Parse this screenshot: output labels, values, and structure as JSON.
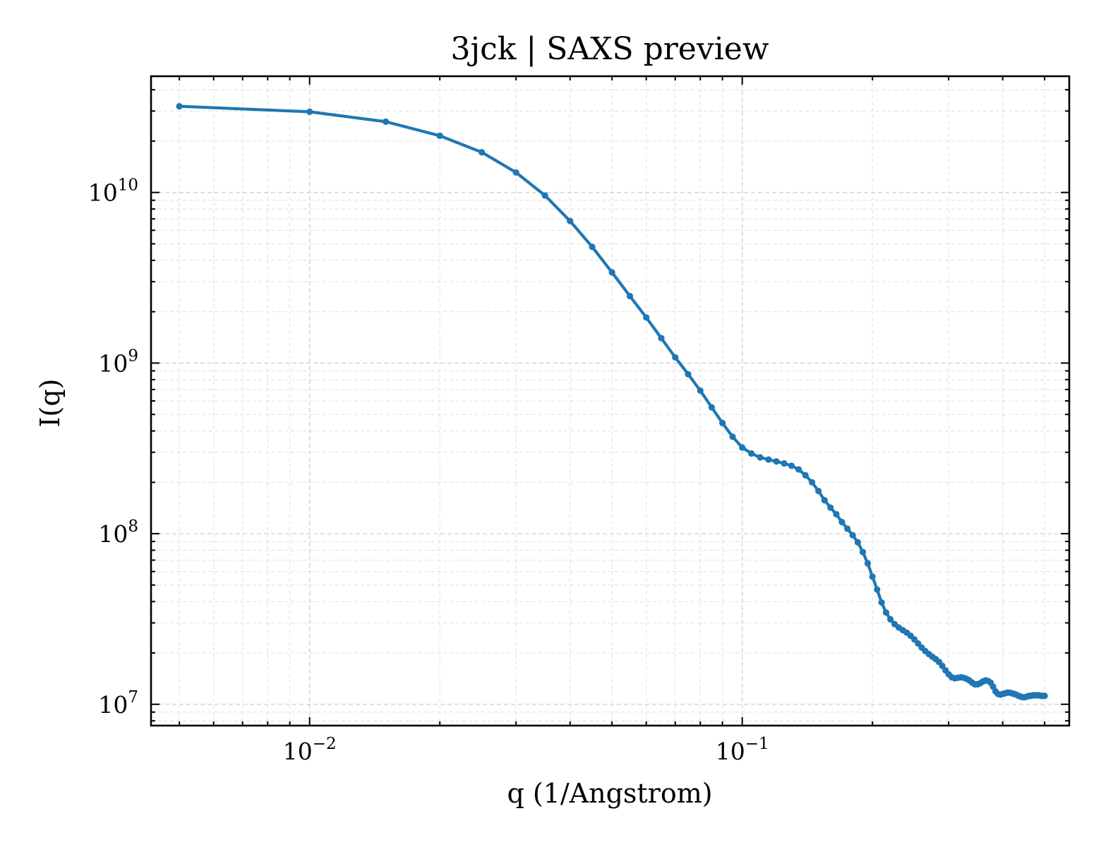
{
  "chart_data": {
    "type": "line",
    "title": "3jck | SAXS preview",
    "xlabel": "q (1/Angstrom)",
    "ylabel": "I(q)",
    "xscale": "log",
    "yscale": "log",
    "xlim": [
      0.0043,
      0.57
    ],
    "ylim": [
      7500000.0,
      48000000000.0
    ],
    "grid": true,
    "grid_minor": true,
    "ticks_direction": "in",
    "color": "#1f77b4",
    "x_ticks": [
      {
        "value": 0.01,
        "base": "10",
        "exp": "−2"
      },
      {
        "value": 0.1,
        "base": "10",
        "exp": "−1"
      }
    ],
    "y_ticks": [
      {
        "value": 10000000.0,
        "base": "10",
        "exp": "7"
      },
      {
        "value": 100000000.0,
        "base": "10",
        "exp": "8"
      },
      {
        "value": 1000000000.0,
        "base": "10",
        "exp": "9"
      },
      {
        "value": 10000000000.0,
        "base": "10",
        "exp": "10"
      }
    ],
    "series": [
      {
        "x": [
          0.005,
          0.01,
          0.015,
          0.02,
          0.025,
          0.03,
          0.035,
          0.04,
          0.045,
          0.05,
          0.055,
          0.06,
          0.065,
          0.07,
          0.075,
          0.08,
          0.085,
          0.09,
          0.095,
          0.1,
          0.105,
          0.11,
          0.115,
          0.12,
          0.125,
          0.13,
          0.135,
          0.14,
          0.145,
          0.15,
          0.155,
          0.16,
          0.165,
          0.17,
          0.175,
          0.18,
          0.185,
          0.19,
          0.195,
          0.2,
          0.205,
          0.21,
          0.215,
          0.22,
          0.225,
          0.23,
          0.235,
          0.24,
          0.245,
          0.25,
          0.255,
          0.26,
          0.265,
          0.27,
          0.275,
          0.28,
          0.285,
          0.29,
          0.295,
          0.3,
          0.305,
          0.31,
          0.315,
          0.32,
          0.325,
          0.33,
          0.335,
          0.34,
          0.345,
          0.35,
          0.355,
          0.36,
          0.365,
          0.37,
          0.375,
          0.38,
          0.385,
          0.39,
          0.395,
          0.4,
          0.405,
          0.41,
          0.415,
          0.42,
          0.425,
          0.43,
          0.435,
          0.44,
          0.445,
          0.45,
          0.455,
          0.46,
          0.465,
          0.47,
          0.475,
          0.48,
          0.485,
          0.49,
          0.495,
          0.5
        ],
        "y": [
          32000000000.0,
          29700000000.0,
          26000000000.0,
          21500000000.0,
          17200000000.0,
          13100000000.0,
          9600000000.0,
          6800000000.0,
          4800000000.0,
          3400000000.0,
          2470000000.0,
          1850000000.0,
          1400000000.0,
          1080000000.0,
          860000000.0,
          690000000.0,
          550000000.0,
          445000000.0,
          370000000.0,
          320000000.0,
          295000000.0,
          280000000.0,
          272000000.0,
          265000000.0,
          258000000.0,
          250000000.0,
          238000000.0,
          220000000.0,
          200000000.0,
          178000000.0,
          157000000.0,
          142000000.0,
          130000000.0,
          117000000.0,
          107000000.0,
          98000000.0,
          89000000.0,
          78000000.0,
          67000000.0,
          56000000.0,
          47000000.0,
          39500000.0,
          34500000.0,
          31500000.0,
          29500000.0,
          28200000.0,
          27200000.0,
          26300000.0,
          25200000.0,
          24000000.0,
          22700000.0,
          21500000.0,
          20500000.0,
          19700000.0,
          19000000.0,
          18400000.0,
          17700000.0,
          16800000.0,
          15800000.0,
          15000000.0,
          14400000.0,
          14200000.0,
          14300000.0,
          14400000.0,
          14300000.0,
          14100000.0,
          13800000.0,
          13400000.0,
          13100000.0,
          13100000.0,
          13300000.0,
          13600000.0,
          13800000.0,
          13700000.0,
          13400000.0,
          12700000.0,
          11900000.0,
          11500000.0,
          11400000.0,
          11500000.0,
          11600000.0,
          11700000.0,
          11700000.0,
          11600000.0,
          11500000.0,
          11400000.0,
          11200000.0,
          11100000.0,
          11000000.0,
          11000000.0,
          11100000.0,
          11200000.0,
          11200000.0,
          11300000.0,
          11300000.0,
          11300000.0,
          11300000.0,
          11200000.0,
          11200000.0,
          11200000.0
        ]
      }
    ]
  }
}
